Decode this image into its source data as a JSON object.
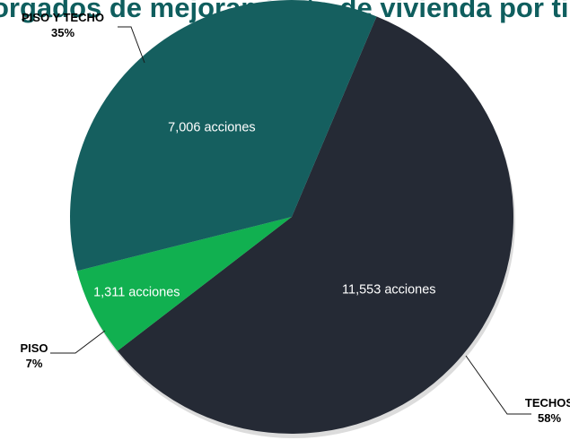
{
  "chart_data": {
    "type": "pie",
    "title": "...apoyo otorgados de mejoramiento de vivienda por tipo de apoyo",
    "slices": [
      {
        "label": "TECHOS",
        "value": 11553,
        "value_label": "11,553 acciones",
        "percent_label": "58%",
        "color": "#252a35"
      },
      {
        "label": "PISO",
        "value": 1311,
        "value_label": "1,311 acciones",
        "percent_label": "7%",
        "color": "#11b050"
      },
      {
        "label": "PISO Y TECHO",
        "value": 7006,
        "value_label": "7,006 acciones",
        "percent_label": "35%",
        "color": "#155f5f"
      }
    ],
    "legend": "none"
  }
}
